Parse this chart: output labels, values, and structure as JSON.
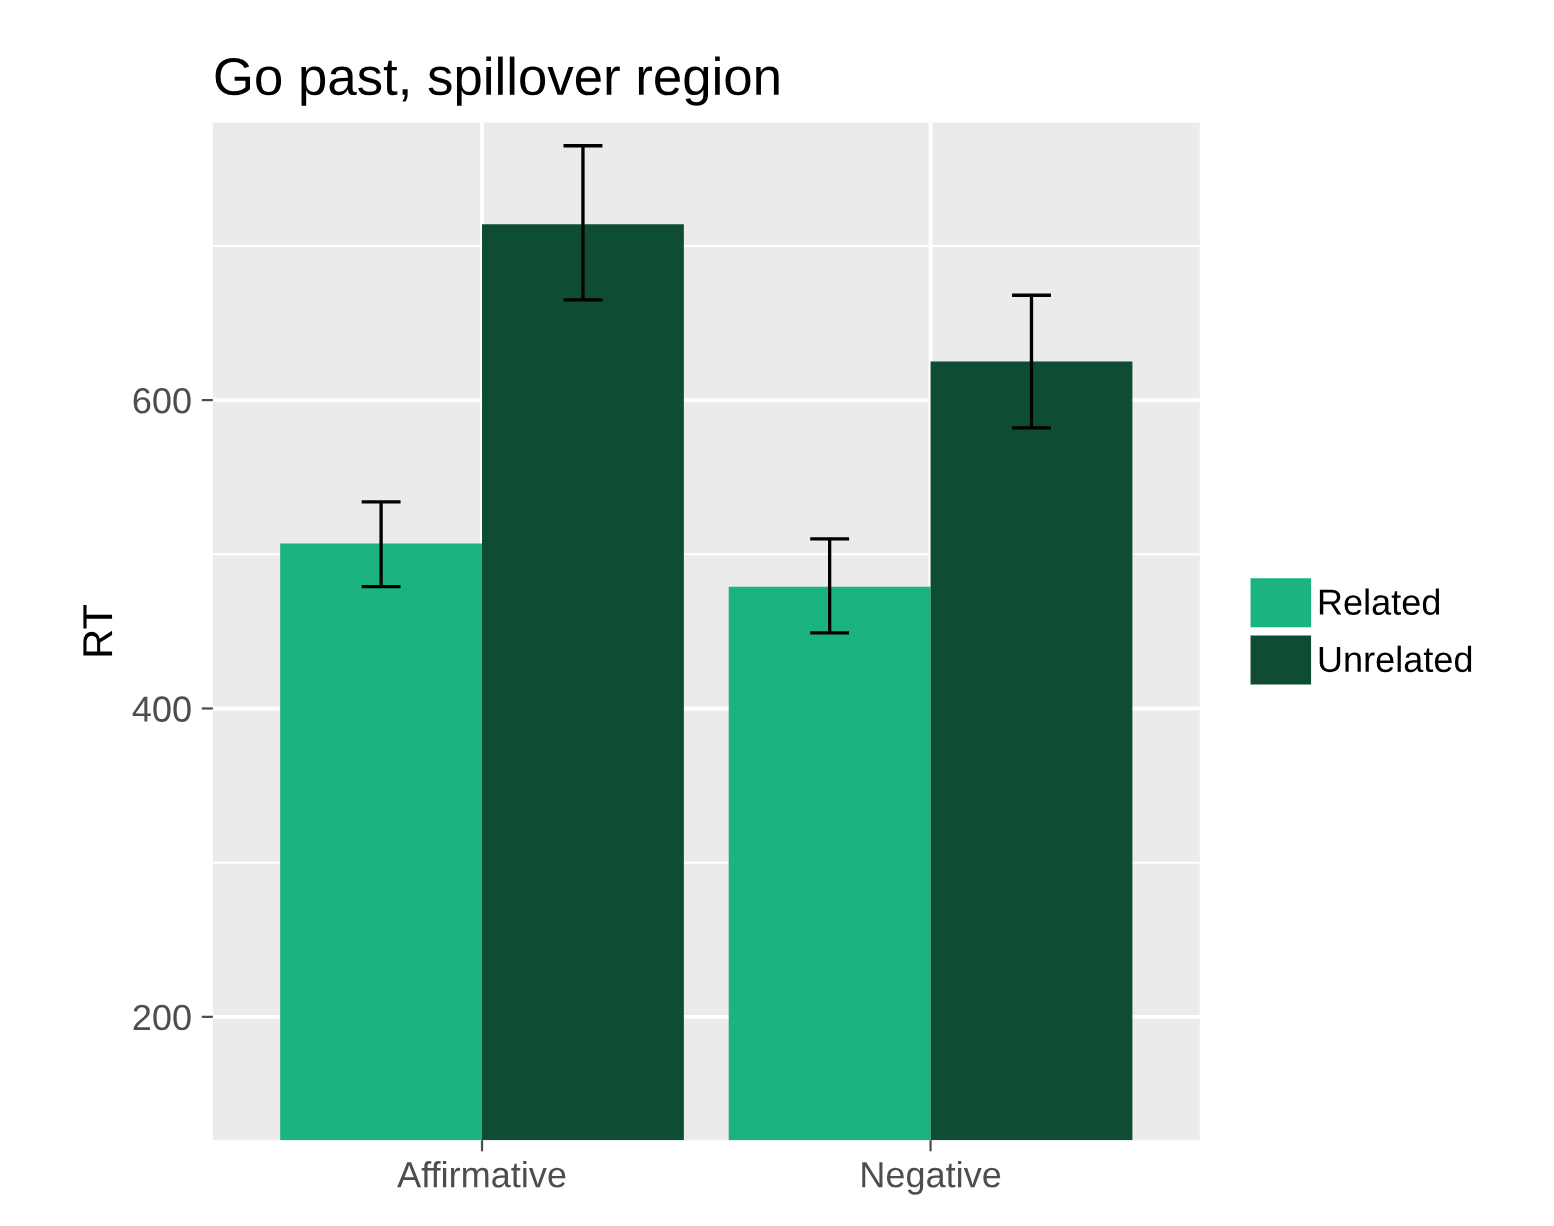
{
  "chart_data": {
    "type": "bar",
    "title": "Go past, spillover region",
    "ylabel": "RT",
    "categories": [
      "Affirmative",
      "Negative"
    ],
    "series": [
      {
        "name": "Related",
        "color": "#1bb382",
        "values": [
          507,
          479
        ],
        "errors": [
          [
            479,
            534
          ],
          [
            449,
            510
          ]
        ]
      },
      {
        "name": "Unrelated",
        "color": "#0e4d33",
        "values": [
          714,
          625
        ],
        "errors": [
          [
            665,
            765
          ],
          [
            582,
            668
          ]
        ]
      }
    ],
    "ylim": [
      120,
      780
    ],
    "yticks": [
      200,
      {
        "value": 300,
        "label": null
      },
      400,
      {
        "value": 500,
        "label": null
      },
      600,
      {
        "value": 700,
        "label": null
      }
    ],
    "grid": true,
    "legend": "right"
  }
}
